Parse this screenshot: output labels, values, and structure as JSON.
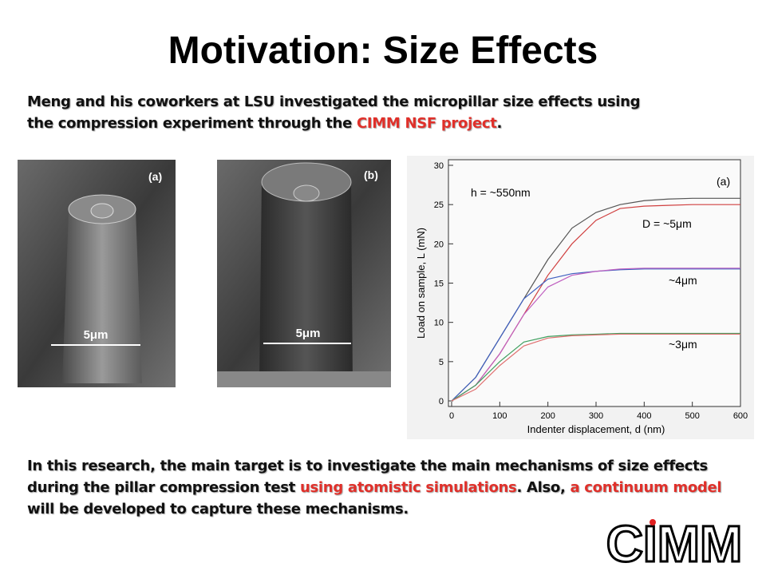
{
  "title": "Motivation: Size Effects",
  "intro": [
    "Meng and his coworkers at LSU investigated the micropillar size effects using",
    "the compression experiment through the ",
    "CIMM NSF project",
    "."
  ],
  "figures": [
    {
      "label": "(a)",
      "scale": "5μm"
    },
    {
      "label": "(b)",
      "scale": "5μm"
    }
  ],
  "chart": {
    "type": "line",
    "label": "(a)",
    "annotations": [
      "h = ~550nm",
      "D = ~5μm",
      "~4μm",
      "~3μm"
    ],
    "xlabel": "Indenter displacement, d (nm)",
    "ylabel": "Load on sample, L (mN)",
    "xlim": [
      0,
      600
    ],
    "ylim": [
      0,
      30
    ],
    "xticks": [
      0,
      100,
      200,
      300,
      400,
      500,
      600
    ],
    "yticks": [
      0,
      5,
      10,
      15,
      20,
      25,
      30
    ],
    "x": [
      0,
      50,
      100,
      150,
      200,
      250,
      300,
      350,
      400,
      450,
      500,
      550,
      600
    ],
    "series": [
      {
        "color": "#555555",
        "values": [
          0,
          3,
          8,
          13,
          18,
          22,
          24,
          25,
          25.5,
          25.7,
          25.8,
          25.8,
          25.8
        ]
      },
      {
        "color": "#d04040",
        "values": [
          0,
          2,
          6,
          11,
          16,
          20,
          23,
          24.5,
          24.8,
          24.9,
          25,
          25,
          25
        ]
      },
      {
        "color": "#4060c0",
        "values": [
          0,
          3,
          8,
          13,
          15.5,
          16.2,
          16.5,
          16.7,
          16.8,
          16.8,
          16.8,
          16.8,
          16.8
        ]
      },
      {
        "color": "#c060c0",
        "values": [
          0,
          2,
          6,
          11,
          14.5,
          16,
          16.5,
          16.8,
          16.9,
          16.9,
          16.9,
          16.9,
          16.9
        ]
      },
      {
        "color": "#40a060",
        "values": [
          0,
          2,
          5,
          7.5,
          8.2,
          8.4,
          8.5,
          8.6,
          8.6,
          8.6,
          8.6,
          8.6,
          8.6
        ]
      },
      {
        "color": "#e07070",
        "values": [
          0,
          1.5,
          4.5,
          7,
          8,
          8.3,
          8.4,
          8.5,
          8.5,
          8.5,
          8.5,
          8.5,
          8.5
        ]
      }
    ]
  },
  "body": [
    "In this research, the main target is to investigate the main mechanisms of size effects",
    "during the pillar compression test ",
    "using atomistic simulations",
    ". Also, ",
    "a continuum model",
    "will be developed to capture these mechanisms."
  ],
  "logo": "CIMM"
}
